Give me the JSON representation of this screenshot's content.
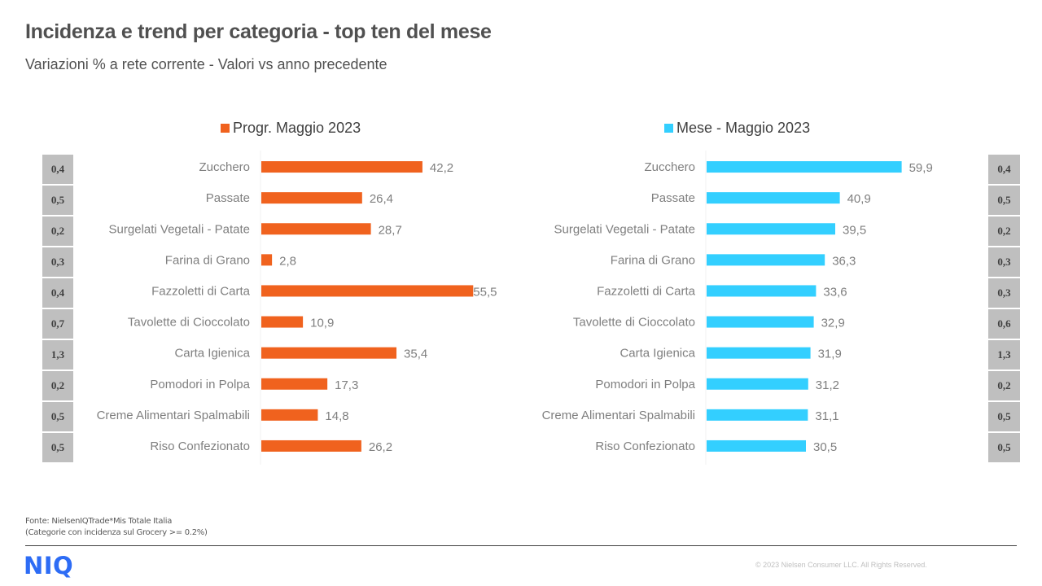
{
  "header": {
    "title": "Incidenza e trend per categoria - top ten del mese",
    "subtitle": "Variazioni  % a rete corrente - Valori vs anno precedente"
  },
  "colors": {
    "progr": "#f0621e",
    "mese": "#33cfff",
    "incidence_box": "#bfbfbf"
  },
  "chart_data": [
    {
      "type": "bar",
      "orientation": "horizontal",
      "title": "",
      "legend": "top-center",
      "series": [
        {
          "name": "Progr. Maggio 2023",
          "color": "#f0621e",
          "values": [
            42.2,
            26.4,
            28.7,
            2.8,
            55.5,
            10.9,
            35.4,
            17.3,
            14.8,
            26.2
          ]
        }
      ],
      "categories": [
        "Zucchero",
        "Passate",
        "Surgelati Vegetali - Patate",
        "Farina di Grano",
        "Fazzoletti di Carta",
        "Tavolette di Cioccolato",
        "Carta Igienica",
        "Pomodori in Polpa",
        "Creme Alimentari Spalmabili",
        "Riso Confezionato"
      ],
      "value_labels": [
        "42,2",
        "26,4",
        "28,7",
        "2,8",
        "55,5",
        "10,9",
        "35,4",
        "17,3",
        "14,8",
        "26,2"
      ],
      "incidence": [
        "0,4",
        "0,5",
        "0,2",
        "0,3",
        "0,4",
        "0,7",
        "1,3",
        "0,2",
        "0,5",
        "0,5"
      ],
      "xlabel": "",
      "ylabel": "",
      "xlim": [
        0,
        60
      ],
      "grid": false
    },
    {
      "type": "bar",
      "orientation": "horizontal",
      "title": "",
      "legend": "top-center",
      "series": [
        {
          "name": "Mese - Maggio 2023",
          "color": "#33cfff",
          "values": [
            59.9,
            40.9,
            39.5,
            36.3,
            33.6,
            32.9,
            31.9,
            31.2,
            31.1,
            30.5
          ]
        }
      ],
      "categories": [
        "Zucchero",
        "Passate",
        "Surgelati Vegetali - Patate",
        "Farina di Grano",
        "Fazzoletti di Carta",
        "Tavolette di Cioccolato",
        "Carta Igienica",
        "Pomodori in Polpa",
        "Creme Alimentari Spalmabili",
        "Riso Confezionato"
      ],
      "value_labels": [
        "59,9",
        "40,9",
        "39,5",
        "36,3",
        "33,6",
        "32,9",
        "31,9",
        "31,2",
        "31,1",
        "30,5"
      ],
      "incidence": [
        "0,4",
        "0,5",
        "0,2",
        "0,3",
        "0,3",
        "0,6",
        "1,3",
        "0,2",
        "0,5",
        "0,5"
      ],
      "xlabel": "",
      "ylabel": "",
      "xlim": [
        0,
        70
      ],
      "grid": false
    }
  ],
  "footer": {
    "source_line1": "Fonte: NielsenIQTrade*Mis  Totale Italia",
    "source_line2": "(Categorie con incidenza sul Grocery >= 0.2%)",
    "logo": "NIQ",
    "copyright": "© 2023  Nielsen Consumer LLC. All Rights Reserved."
  }
}
